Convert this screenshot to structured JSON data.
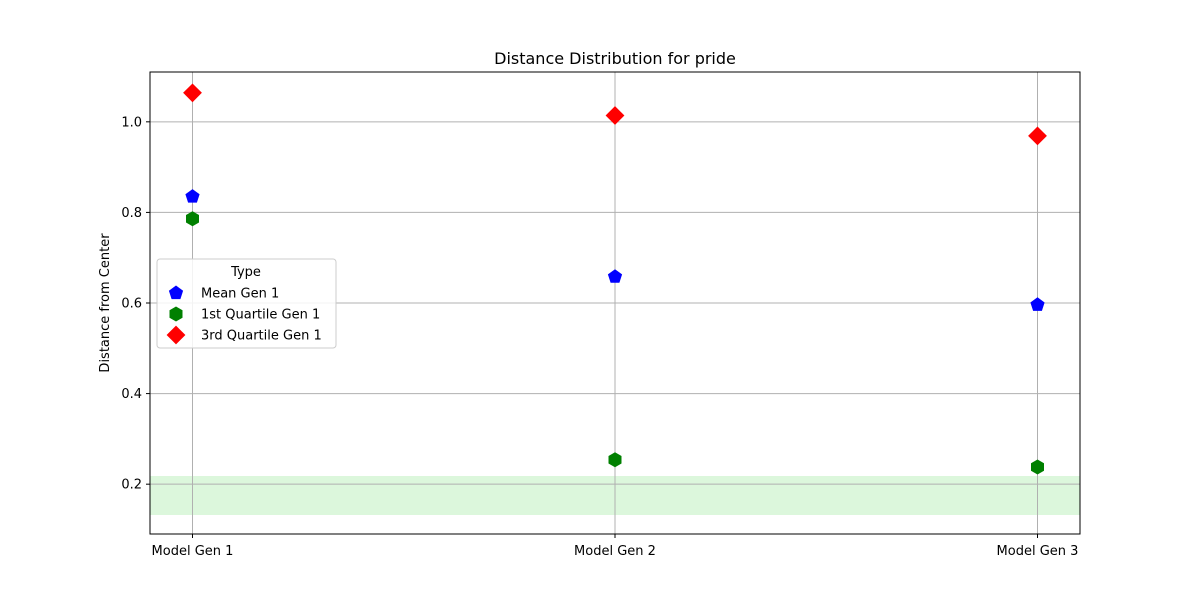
{
  "chart_data": {
    "type": "scatter",
    "title": "Distance Distribution for pride",
    "xlabel": "",
    "ylabel": "Distance from Center",
    "categories": [
      "Model Gen 1",
      "Model Gen 2",
      "Model Gen 3"
    ],
    "ylim": [
      0.09,
      1.11
    ],
    "yticks": [
      "0.2",
      "0.4",
      "0.6",
      "0.8",
      "1.0"
    ],
    "grid": true,
    "band": {
      "from": 0.132,
      "to": 0.218,
      "color": "#dcf7dc"
    },
    "legend": {
      "title": "Type",
      "placement": "center-left"
    },
    "series": [
      {
        "name": "Mean Gen 1",
        "marker": "pentagon",
        "color": "#0000ff",
        "values": [
          0.835,
          0.658,
          0.596
        ]
      },
      {
        "name": "1st Quartile Gen 1",
        "marker": "hexagon",
        "color": "#008000",
        "values": [
          0.786,
          0.254,
          0.238
        ]
      },
      {
        "name": "3rd Quartile Gen 1",
        "marker": "diamond",
        "color": "#ff0000",
        "values": [
          1.064,
          1.014,
          0.969
        ]
      }
    ]
  }
}
